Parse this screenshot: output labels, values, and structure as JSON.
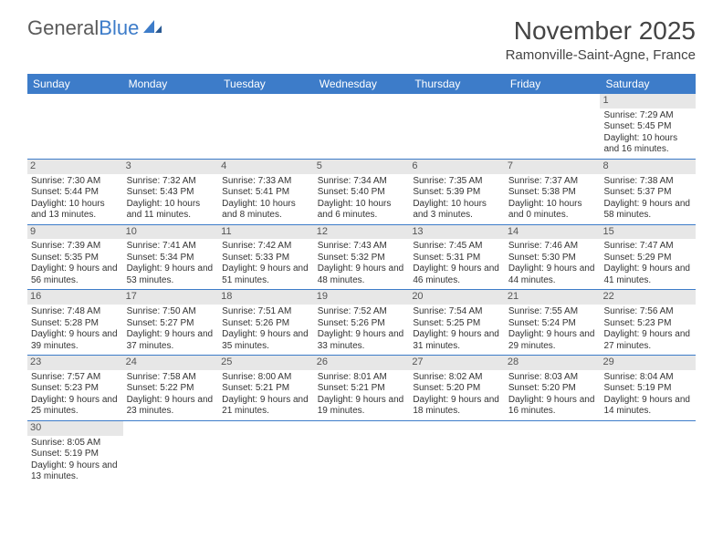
{
  "logo": {
    "text1": "General",
    "text2": "Blue"
  },
  "title": {
    "month": "November 2025",
    "location": "Ramonville-Saint-Agne, France"
  },
  "colors": {
    "header_bg": "#3d7cc9",
    "header_text": "#ffffff",
    "daynum_bg": "#e7e7e7",
    "divider": "#3d7cc9",
    "logo_gray": "#5a5a5a",
    "logo_blue": "#3d7cc9"
  },
  "day_names": [
    "Sunday",
    "Monday",
    "Tuesday",
    "Wednesday",
    "Thursday",
    "Friday",
    "Saturday"
  ],
  "weeks": [
    [
      {
        "empty": true
      },
      {
        "empty": true
      },
      {
        "empty": true
      },
      {
        "empty": true
      },
      {
        "empty": true
      },
      {
        "empty": true
      },
      {
        "day": "1",
        "sunrise": "Sunrise: 7:29 AM",
        "sunset": "Sunset: 5:45 PM",
        "daylight": "Daylight: 10 hours and 16 minutes."
      }
    ],
    [
      {
        "day": "2",
        "sunrise": "Sunrise: 7:30 AM",
        "sunset": "Sunset: 5:44 PM",
        "daylight": "Daylight: 10 hours and 13 minutes."
      },
      {
        "day": "3",
        "sunrise": "Sunrise: 7:32 AM",
        "sunset": "Sunset: 5:43 PM",
        "daylight": "Daylight: 10 hours and 11 minutes."
      },
      {
        "day": "4",
        "sunrise": "Sunrise: 7:33 AM",
        "sunset": "Sunset: 5:41 PM",
        "daylight": "Daylight: 10 hours and 8 minutes."
      },
      {
        "day": "5",
        "sunrise": "Sunrise: 7:34 AM",
        "sunset": "Sunset: 5:40 PM",
        "daylight": "Daylight: 10 hours and 6 minutes."
      },
      {
        "day": "6",
        "sunrise": "Sunrise: 7:35 AM",
        "sunset": "Sunset: 5:39 PM",
        "daylight": "Daylight: 10 hours and 3 minutes."
      },
      {
        "day": "7",
        "sunrise": "Sunrise: 7:37 AM",
        "sunset": "Sunset: 5:38 PM",
        "daylight": "Daylight: 10 hours and 0 minutes."
      },
      {
        "day": "8",
        "sunrise": "Sunrise: 7:38 AM",
        "sunset": "Sunset: 5:37 PM",
        "daylight": "Daylight: 9 hours and 58 minutes."
      }
    ],
    [
      {
        "day": "9",
        "sunrise": "Sunrise: 7:39 AM",
        "sunset": "Sunset: 5:35 PM",
        "daylight": "Daylight: 9 hours and 56 minutes."
      },
      {
        "day": "10",
        "sunrise": "Sunrise: 7:41 AM",
        "sunset": "Sunset: 5:34 PM",
        "daylight": "Daylight: 9 hours and 53 minutes."
      },
      {
        "day": "11",
        "sunrise": "Sunrise: 7:42 AM",
        "sunset": "Sunset: 5:33 PM",
        "daylight": "Daylight: 9 hours and 51 minutes."
      },
      {
        "day": "12",
        "sunrise": "Sunrise: 7:43 AM",
        "sunset": "Sunset: 5:32 PM",
        "daylight": "Daylight: 9 hours and 48 minutes."
      },
      {
        "day": "13",
        "sunrise": "Sunrise: 7:45 AM",
        "sunset": "Sunset: 5:31 PM",
        "daylight": "Daylight: 9 hours and 46 minutes."
      },
      {
        "day": "14",
        "sunrise": "Sunrise: 7:46 AM",
        "sunset": "Sunset: 5:30 PM",
        "daylight": "Daylight: 9 hours and 44 minutes."
      },
      {
        "day": "15",
        "sunrise": "Sunrise: 7:47 AM",
        "sunset": "Sunset: 5:29 PM",
        "daylight": "Daylight: 9 hours and 41 minutes."
      }
    ],
    [
      {
        "day": "16",
        "sunrise": "Sunrise: 7:48 AM",
        "sunset": "Sunset: 5:28 PM",
        "daylight": "Daylight: 9 hours and 39 minutes."
      },
      {
        "day": "17",
        "sunrise": "Sunrise: 7:50 AM",
        "sunset": "Sunset: 5:27 PM",
        "daylight": "Daylight: 9 hours and 37 minutes."
      },
      {
        "day": "18",
        "sunrise": "Sunrise: 7:51 AM",
        "sunset": "Sunset: 5:26 PM",
        "daylight": "Daylight: 9 hours and 35 minutes."
      },
      {
        "day": "19",
        "sunrise": "Sunrise: 7:52 AM",
        "sunset": "Sunset: 5:26 PM",
        "daylight": "Daylight: 9 hours and 33 minutes."
      },
      {
        "day": "20",
        "sunrise": "Sunrise: 7:54 AM",
        "sunset": "Sunset: 5:25 PM",
        "daylight": "Daylight: 9 hours and 31 minutes."
      },
      {
        "day": "21",
        "sunrise": "Sunrise: 7:55 AM",
        "sunset": "Sunset: 5:24 PM",
        "daylight": "Daylight: 9 hours and 29 minutes."
      },
      {
        "day": "22",
        "sunrise": "Sunrise: 7:56 AM",
        "sunset": "Sunset: 5:23 PM",
        "daylight": "Daylight: 9 hours and 27 minutes."
      }
    ],
    [
      {
        "day": "23",
        "sunrise": "Sunrise: 7:57 AM",
        "sunset": "Sunset: 5:23 PM",
        "daylight": "Daylight: 9 hours and 25 minutes."
      },
      {
        "day": "24",
        "sunrise": "Sunrise: 7:58 AM",
        "sunset": "Sunset: 5:22 PM",
        "daylight": "Daylight: 9 hours and 23 minutes."
      },
      {
        "day": "25",
        "sunrise": "Sunrise: 8:00 AM",
        "sunset": "Sunset: 5:21 PM",
        "daylight": "Daylight: 9 hours and 21 minutes."
      },
      {
        "day": "26",
        "sunrise": "Sunrise: 8:01 AM",
        "sunset": "Sunset: 5:21 PM",
        "daylight": "Daylight: 9 hours and 19 minutes."
      },
      {
        "day": "27",
        "sunrise": "Sunrise: 8:02 AM",
        "sunset": "Sunset: 5:20 PM",
        "daylight": "Daylight: 9 hours and 18 minutes."
      },
      {
        "day": "28",
        "sunrise": "Sunrise: 8:03 AM",
        "sunset": "Sunset: 5:20 PM",
        "daylight": "Daylight: 9 hours and 16 minutes."
      },
      {
        "day": "29",
        "sunrise": "Sunrise: 8:04 AM",
        "sunset": "Sunset: 5:19 PM",
        "daylight": "Daylight: 9 hours and 14 minutes."
      }
    ],
    [
      {
        "day": "30",
        "sunrise": "Sunrise: 8:05 AM",
        "sunset": "Sunset: 5:19 PM",
        "daylight": "Daylight: 9 hours and 13 minutes."
      },
      {
        "empty": true
      },
      {
        "empty": true
      },
      {
        "empty": true
      },
      {
        "empty": true
      },
      {
        "empty": true
      },
      {
        "empty": true
      }
    ]
  ]
}
